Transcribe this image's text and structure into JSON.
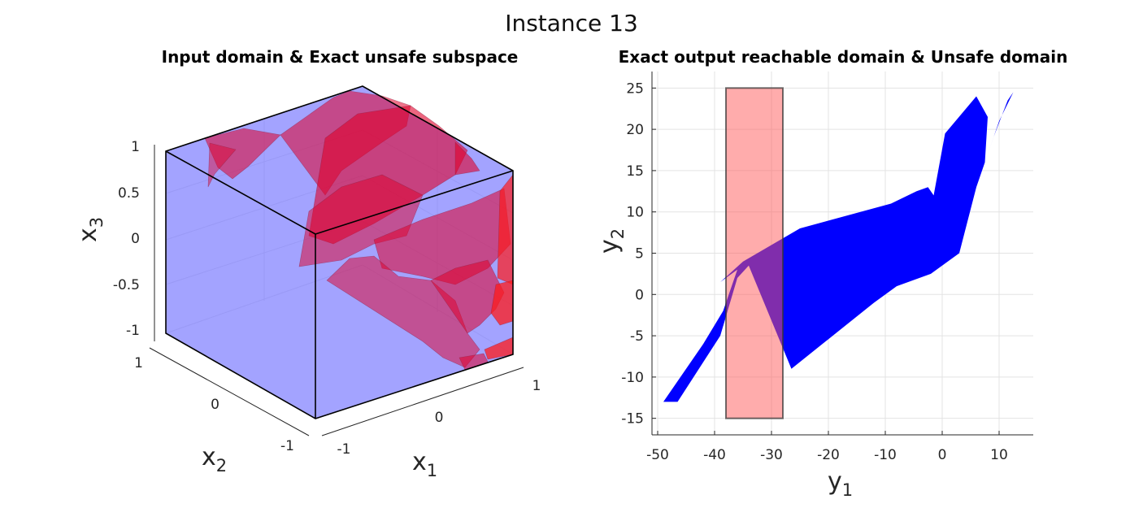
{
  "figure": {
    "title": "Instance 13"
  },
  "left_panel": {
    "title": "Input domain & Exact unsafe subspace",
    "x1_label": "x",
    "x1_sub": "1",
    "x2_label": "x",
    "x2_sub": "2",
    "x3_label": "x",
    "x3_sub": "3",
    "x1_ticks": [
      "-1",
      "0",
      "1"
    ],
    "x2_ticks": [
      "-1",
      "0",
      "1"
    ],
    "x3_ticks": [
      "1",
      "0.5",
      "0",
      "-0.5",
      "-1"
    ],
    "colors": {
      "input_domain": "#8080ff",
      "unsafe_subspace": "#e0002a",
      "edges": "#000000"
    }
  },
  "right_panel": {
    "title": "Exact output reachable domain & Unsafe domain",
    "xlabel": "y",
    "xlabel_sub": "1",
    "ylabel": "y",
    "ylabel_sub": "2",
    "colors": {
      "reachable": "#0000ff",
      "unsafe": "#ff5a5a",
      "overlap": "#800080"
    }
  },
  "chart_data": [
    {
      "type": "scatter",
      "subtype": "3d-polytope",
      "title": "Input domain & Exact unsafe subspace",
      "xlim": [
        -1,
        1
      ],
      "ylim": [
        -1,
        1
      ],
      "zlim": [
        -1,
        1
      ],
      "series": [],
      "grid": true
    },
    {
      "type": "area",
      "title": "Exact output reachable domain & Unsafe domain",
      "xlim": [
        -51,
        16
      ],
      "ylim": [
        -17,
        27
      ],
      "xticks": [
        -50,
        -40,
        -30,
        -20,
        -10,
        0,
        10
      ],
      "yticks": [
        -15,
        -10,
        -5,
        0,
        5,
        10,
        15,
        20,
        25
      ],
      "grid": true,
      "series": [
        {
          "role": "reachable",
          "points": [
            [
              -49,
              -13
            ],
            [
              -46.5,
              -13
            ],
            [
              -39,
              -5
            ],
            [
              -36,
              2
            ],
            [
              -34,
              3.5
            ],
            [
              -26.5,
              -9
            ],
            [
              -12,
              -1
            ],
            [
              -8,
              1
            ],
            [
              -2,
              2.5
            ],
            [
              3,
              5
            ],
            [
              6,
              13
            ],
            [
              9,
              19
            ],
            [
              11.5,
              23.5
            ],
            [
              12.5,
              24.5
            ],
            [
              10,
              21
            ],
            [
              7.5,
              16
            ],
            [
              8,
              21.5
            ],
            [
              6,
              24
            ],
            [
              0.5,
              19.5
            ],
            [
              -1.5,
              12
            ],
            [
              -2.5,
              13
            ],
            [
              -4.5,
              12.5
            ],
            [
              -9,
              11
            ],
            [
              -25,
              8
            ],
            [
              -35,
              4
            ],
            [
              -39,
              1.5
            ],
            [
              -36,
              3
            ],
            [
              -38.5,
              -2
            ],
            [
              -42,
              -6
            ]
          ]
        },
        {
          "role": "unsafe",
          "rect": {
            "x": [
              -38,
              -28
            ],
            "y": [
              -15,
              25
            ]
          }
        }
      ]
    }
  ]
}
